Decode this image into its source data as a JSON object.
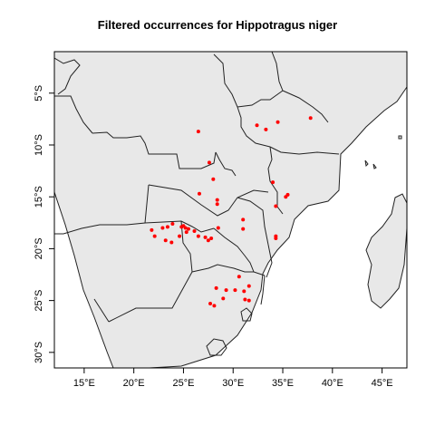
{
  "title": "Filtered occurrences for Hippotragus niger",
  "map": {
    "lon_range": [
      12,
      47.5
    ],
    "lat_range": [
      -31.5,
      -1
    ],
    "land_color": "#e8e8e8",
    "border_color": "#222222",
    "point_color": "#ff0000",
    "x_ticks": [
      {
        "value": 15,
        "label": "15°E"
      },
      {
        "value": 20,
        "label": "20°E"
      },
      {
        "value": 25,
        "label": "25°E"
      },
      {
        "value": 30,
        "label": "30°E"
      },
      {
        "value": 35,
        "label": "35°E"
      },
      {
        "value": 40,
        "label": "40°E"
      },
      {
        "value": 45,
        "label": "45°E"
      }
    ],
    "y_ticks": [
      {
        "value": -5,
        "label": "5°S"
      },
      {
        "value": -10,
        "label": "10°S"
      },
      {
        "value": -15,
        "label": "15°S"
      },
      {
        "value": -20,
        "label": "20°S"
      },
      {
        "value": -25,
        "label": "25°S"
      },
      {
        "value": -30,
        "label": "30°S"
      }
    ],
    "occurrences": [
      [
        26.5,
        -8.7
      ],
      [
        27.6,
        -11.7
      ],
      [
        32.4,
        -8.1
      ],
      [
        33.3,
        -8.5
      ],
      [
        34.5,
        -7.8
      ],
      [
        37.8,
        -7.4
      ],
      [
        28.0,
        -13.3
      ],
      [
        26.6,
        -14.7
      ],
      [
        28.4,
        -15.3
      ],
      [
        28.4,
        -15.7
      ],
      [
        31.0,
        -17.2
      ],
      [
        31.0,
        -18.1
      ],
      [
        34.0,
        -13.6
      ],
      [
        35.3,
        -15.0
      ],
      [
        35.5,
        -14.8
      ],
      [
        34.3,
        -15.9
      ],
      [
        34.3,
        -19.0
      ],
      [
        34.3,
        -18.8
      ],
      [
        21.8,
        -18.2
      ],
      [
        22.1,
        -18.8
      ],
      [
        22.9,
        -18.0
      ],
      [
        23.4,
        -17.9
      ],
      [
        23.9,
        -17.6
      ],
      [
        23.2,
        -19.2
      ],
      [
        23.8,
        -19.4
      ],
      [
        24.8,
        -17.9
      ],
      [
        25.0,
        -17.8
      ],
      [
        25.2,
        -18.0
      ],
      [
        25.5,
        -18.1
      ],
      [
        25.3,
        -18.4
      ],
      [
        24.6,
        -18.8
      ],
      [
        26.1,
        -18.3
      ],
      [
        26.5,
        -18.8
      ],
      [
        27.2,
        -18.9
      ],
      [
        27.5,
        -19.2
      ],
      [
        27.8,
        -19.0
      ],
      [
        28.5,
        -18.0
      ],
      [
        30.6,
        -22.7
      ],
      [
        29.3,
        -24.0
      ],
      [
        30.2,
        -24.0
      ],
      [
        29.0,
        -24.8
      ],
      [
        31.1,
        -24.1
      ],
      [
        31.6,
        -23.6
      ],
      [
        31.2,
        -24.9
      ],
      [
        31.6,
        -25.0
      ],
      [
        27.7,
        -25.3
      ],
      [
        28.1,
        -25.5
      ],
      [
        28.3,
        -23.8
      ]
    ]
  }
}
